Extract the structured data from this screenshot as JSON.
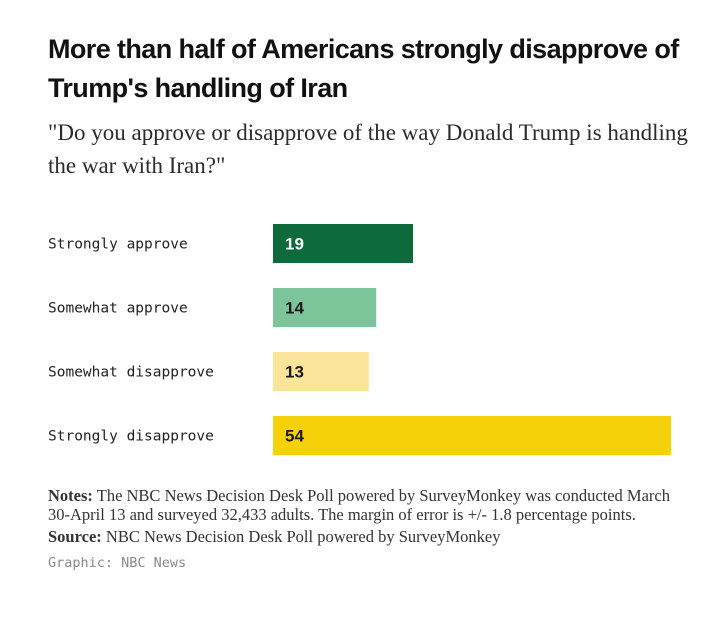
{
  "title": "More than half of Americans strongly disapprove of Trump's handling of Iran",
  "subtitle": "\"Do you approve or disapprove of the way Donald Trump is handling the war with Iran?\"",
  "chart_data": {
    "type": "bar",
    "orientation": "horizontal",
    "categories": [
      "Strongly approve",
      "Somewhat approve",
      "Somewhat disapprove",
      "Strongly disapprove"
    ],
    "values": [
      19,
      14,
      13,
      54
    ],
    "bar_colors": [
      "#0e6a3a",
      "#7cc49a",
      "#fbe59a",
      "#f5d10a"
    ],
    "label_colors": [
      "#ffffff",
      "#1a1a1a",
      "#1a1a1a",
      "#1a1a1a"
    ],
    "xlim": [
      0,
      54
    ],
    "grid": false,
    "legend": "none"
  },
  "notes": {
    "notes_label": "Notes:",
    "notes_text": "The NBC News Decision Desk Poll powered by SurveyMonkey was conducted March 30-April 13 and surveyed 32,433 adults. The margin of error is +/- 1.8 percentage points.",
    "source_label": "Source:",
    "source_text": "NBC News Decision Desk Poll powered by SurveyMonkey",
    "credit": "Graphic: NBC News"
  }
}
